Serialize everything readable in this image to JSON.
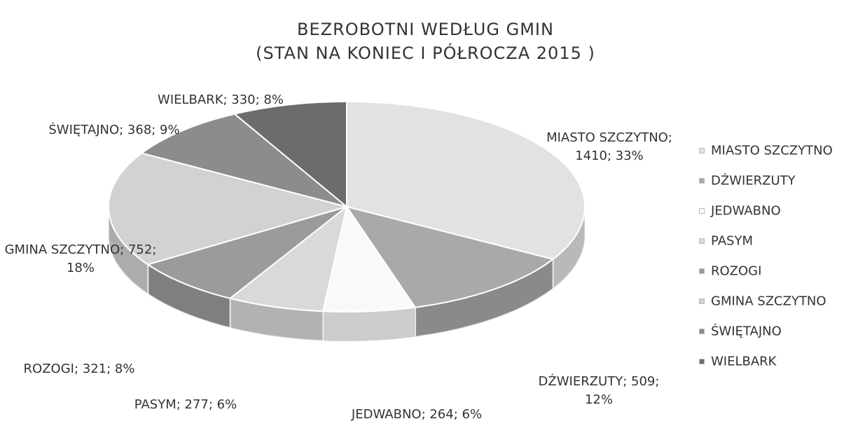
{
  "chart_data": {
    "type": "pie",
    "title": "BEZROBOTNI WEDŁUG GMIN",
    "subtitle": "(STAN NA KONIEC I PÓŁROCZA 2015 )",
    "categories": [
      "MIASTO SZCZYTNO",
      "DŹWIERZUTY",
      "JEDWABNO",
      "PASYM",
      "ROZOGI",
      "GMINA SZCZYTNO",
      "ŚWIĘTAJNO",
      "WIELBARK"
    ],
    "values": [
      1410,
      509,
      264,
      277,
      321,
      752,
      368,
      330
    ],
    "value_labels": [
      "MIASTO SZCZYTNO; 1410; 33%",
      "DŹWIERZUTY; 509; 12%",
      "JEDWABNO; 264; 6%",
      "PASYM; 277; 6%",
      "ROZOGI; 321; 8%",
      "GMINA SZCZYTNO; 752; 18%",
      "ŚWIĘTAJNO; 368; 9%",
      "WIELBARK; 330; 8%"
    ],
    "colors": [
      "#e2e2e2",
      "#a9a9a9",
      "#f9f9f9",
      "#d9d9d9",
      "#9b9b9b",
      "#d2d2d2",
      "#8c8c8c",
      "#6c6c6c"
    ],
    "legend": "right"
  }
}
